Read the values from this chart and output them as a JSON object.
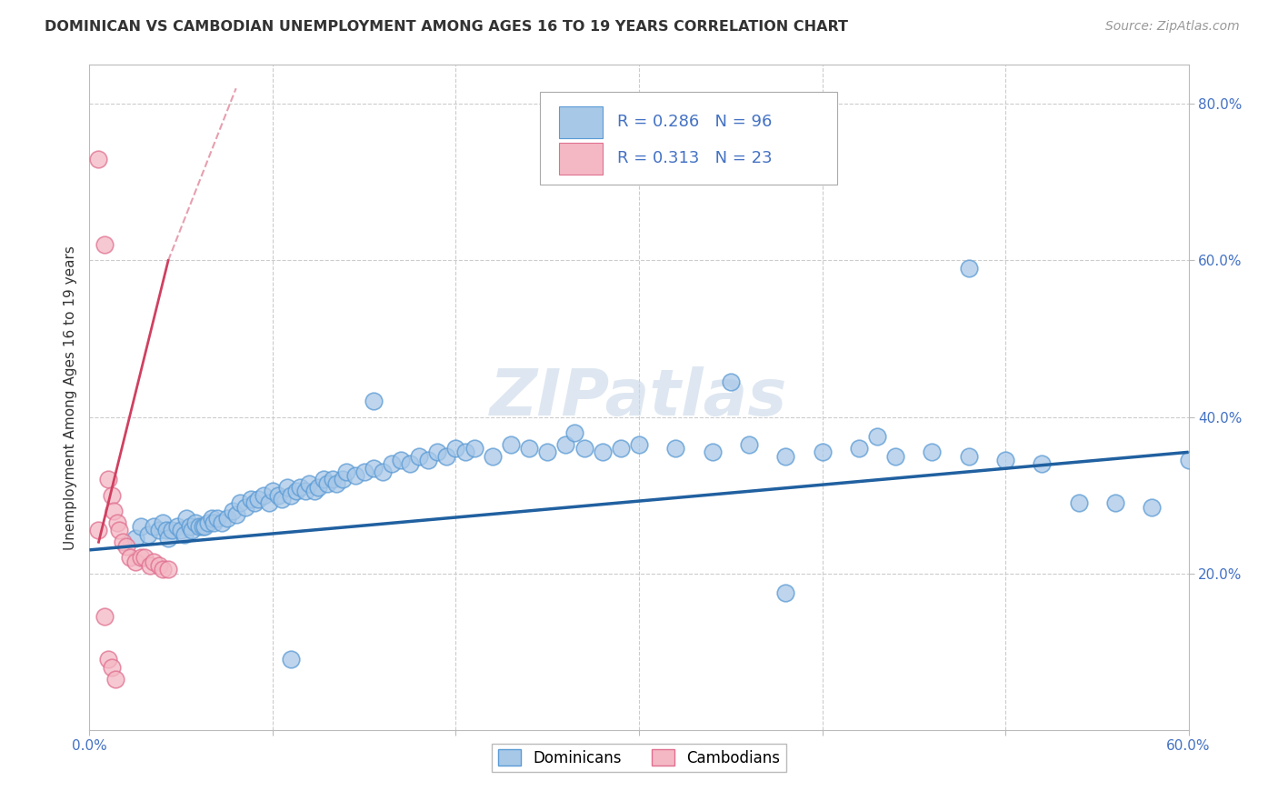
{
  "title": "DOMINICAN VS CAMBODIAN UNEMPLOYMENT AMONG AGES 16 TO 19 YEARS CORRELATION CHART",
  "source_text": "Source: ZipAtlas.com",
  "ylabel_text": "Unemployment Among Ages 16 to 19 years",
  "watermark": "ZIPatlas",
  "legend_R": [
    0.286,
    0.313
  ],
  "legend_N": [
    96,
    23
  ],
  "blue_scatter_color": "#a8c8e8",
  "blue_edge_color": "#5b9bd5",
  "pink_scatter_color": "#f4b8c4",
  "pink_edge_color": "#e07090",
  "blue_line_color": "#2060a0",
  "pink_line_color": "#d04060",
  "grid_color": "#cccccc",
  "tick_color": "#4472c4",
  "title_color": "#333333",
  "source_color": "#999999",
  "ylabel_color": "#333333",
  "bg_color": "#ffffff",
  "xmin": 0.0,
  "xmax": 0.6,
  "ymin": 0.0,
  "ymax": 0.85,
  "blue_scatter_x": [
    0.025,
    0.028,
    0.032,
    0.035,
    0.038,
    0.04,
    0.042,
    0.043,
    0.045,
    0.048,
    0.05,
    0.052,
    0.053,
    0.055,
    0.056,
    0.058,
    0.06,
    0.062,
    0.063,
    0.065,
    0.067,
    0.068,
    0.07,
    0.072,
    0.075,
    0.078,
    0.08,
    0.082,
    0.085,
    0.088,
    0.09,
    0.092,
    0.095,
    0.098,
    0.1,
    0.103,
    0.105,
    0.108,
    0.11,
    0.113,
    0.115,
    0.118,
    0.12,
    0.123,
    0.125,
    0.128,
    0.13,
    0.133,
    0.135,
    0.138,
    0.14,
    0.145,
    0.15,
    0.155,
    0.16,
    0.165,
    0.17,
    0.175,
    0.18,
    0.185,
    0.19,
    0.195,
    0.2,
    0.205,
    0.21,
    0.22,
    0.23,
    0.24,
    0.25,
    0.26,
    0.27,
    0.28,
    0.29,
    0.3,
    0.32,
    0.34,
    0.36,
    0.38,
    0.4,
    0.42,
    0.44,
    0.46,
    0.48,
    0.5,
    0.52,
    0.54,
    0.56,
    0.58,
    0.6,
    0.61,
    0.48,
    0.35,
    0.155,
    0.265,
    0.43,
    0.38,
    0.11
  ],
  "blue_scatter_y": [
    0.245,
    0.26,
    0.25,
    0.26,
    0.255,
    0.265,
    0.255,
    0.245,
    0.255,
    0.26,
    0.255,
    0.25,
    0.27,
    0.26,
    0.255,
    0.265,
    0.26,
    0.26,
    0.26,
    0.265,
    0.27,
    0.265,
    0.27,
    0.265,
    0.27,
    0.28,
    0.275,
    0.29,
    0.285,
    0.295,
    0.29,
    0.295,
    0.3,
    0.29,
    0.305,
    0.3,
    0.295,
    0.31,
    0.3,
    0.305,
    0.31,
    0.305,
    0.315,
    0.305,
    0.31,
    0.32,
    0.315,
    0.32,
    0.315,
    0.32,
    0.33,
    0.325,
    0.33,
    0.335,
    0.33,
    0.34,
    0.345,
    0.34,
    0.35,
    0.345,
    0.355,
    0.35,
    0.36,
    0.355,
    0.36,
    0.35,
    0.365,
    0.36,
    0.355,
    0.365,
    0.36,
    0.355,
    0.36,
    0.365,
    0.36,
    0.355,
    0.365,
    0.35,
    0.355,
    0.36,
    0.35,
    0.355,
    0.35,
    0.345,
    0.34,
    0.29,
    0.29,
    0.285,
    0.345,
    0.32,
    0.59,
    0.445,
    0.42,
    0.38,
    0.375,
    0.175,
    0.09
  ],
  "pink_scatter_x": [
    0.005,
    0.008,
    0.01,
    0.012,
    0.013,
    0.015,
    0.016,
    0.018,
    0.02,
    0.022,
    0.025,
    0.028,
    0.03,
    0.033,
    0.035,
    0.038,
    0.04,
    0.043,
    0.005,
    0.008,
    0.01,
    0.012,
    0.014
  ],
  "pink_scatter_y": [
    0.73,
    0.62,
    0.32,
    0.3,
    0.28,
    0.265,
    0.255,
    0.24,
    0.235,
    0.22,
    0.215,
    0.22,
    0.22,
    0.21,
    0.215,
    0.21,
    0.205,
    0.205,
    0.255,
    0.145,
    0.09,
    0.08,
    0.065
  ],
  "blue_trend_x0": 0.0,
  "blue_trend_x1": 0.6,
  "blue_trend_y0": 0.23,
  "blue_trend_y1": 0.355,
  "pink_trend_x0": 0.005,
  "pink_trend_x1": 0.043,
  "pink_trend_y0": 0.24,
  "pink_trend_y1": 0.6
}
